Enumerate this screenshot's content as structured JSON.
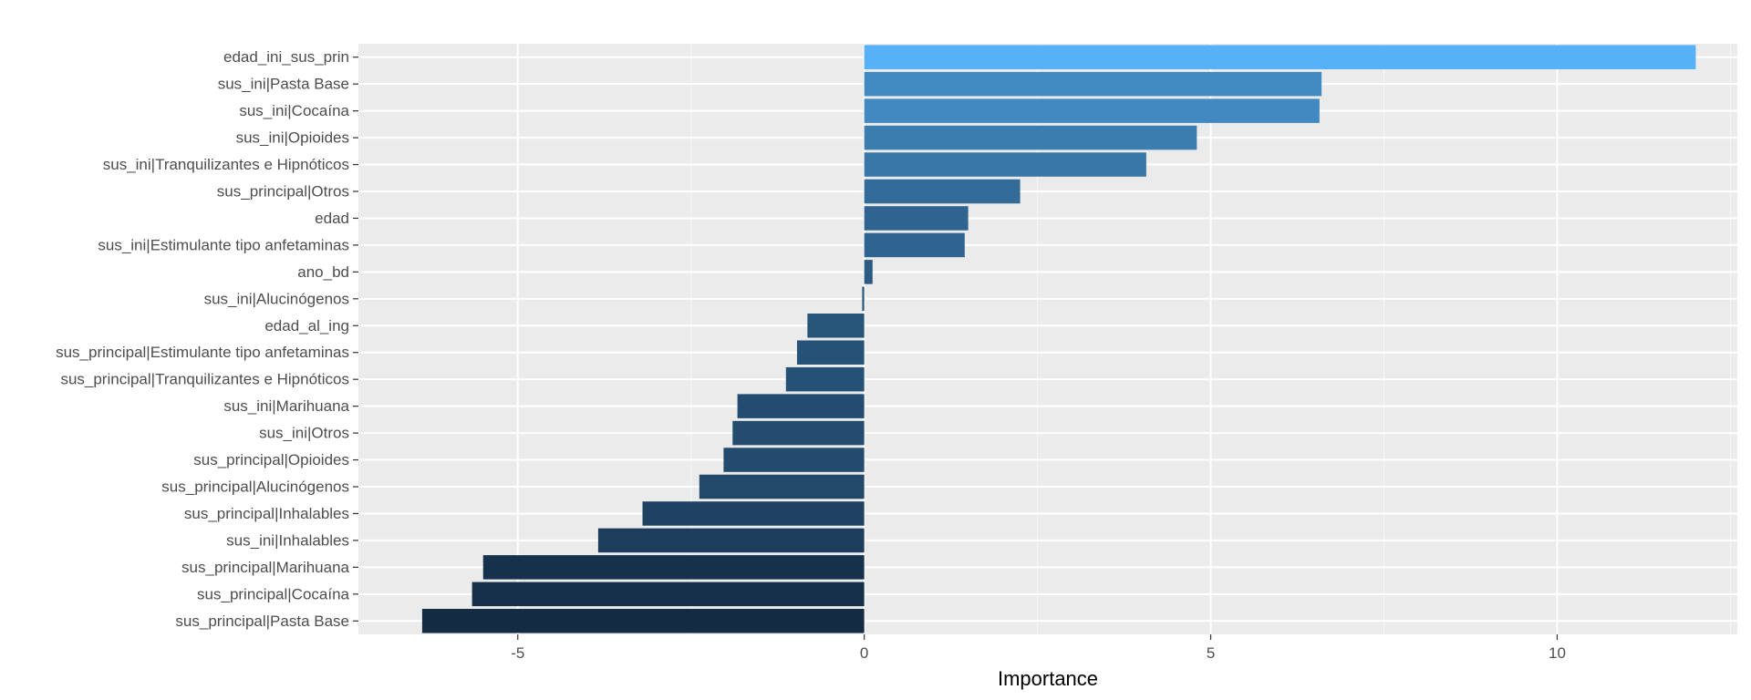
{
  "chart_data": {
    "type": "bar",
    "orientation": "horizontal",
    "xlabel": "Importance",
    "ylabel": "",
    "xlim": [
      -7.3,
      12.6
    ],
    "x_ticks": [
      -5,
      0,
      5,
      10
    ],
    "x_tick_labels": [
      "-5",
      "0",
      "5",
      "10"
    ],
    "grid": true,
    "legend": "none",
    "fill_gradient": {
      "low": "#132b43",
      "high": "#56b1f7"
    },
    "categories": [
      "edad_ini_sus_prin",
      "sus_ini|Pasta Base",
      "sus_ini|Cocaína",
      "sus_ini|Opioides",
      "sus_ini|Tranquilizantes e Hipnóticos",
      "sus_principal|Otros",
      "edad",
      "sus_ini|Estimulante tipo anfetaminas",
      "ano_bd",
      "sus_ini|Alucinógenos",
      "edad_al_ing",
      "sus_principal|Estimulante tipo anfetaminas",
      "sus_principal|Tranquilizantes e Hipnóticos",
      "sus_ini|Marihuana",
      "sus_ini|Otros",
      "sus_principal|Opioides",
      "sus_principal|Alucinógenos",
      "sus_principal|Inhalables",
      "sus_ini|Inhalables",
      "sus_principal|Marihuana",
      "sus_principal|Cocaína",
      "sus_principal|Pasta Base"
    ],
    "values": [
      12.0,
      6.6,
      6.57,
      4.8,
      4.07,
      2.25,
      1.5,
      1.45,
      0.12,
      -0.03,
      -0.82,
      -0.97,
      -1.13,
      -1.83,
      -1.9,
      -2.03,
      -2.38,
      -3.2,
      -3.84,
      -5.5,
      -5.66,
      -6.38
    ]
  }
}
